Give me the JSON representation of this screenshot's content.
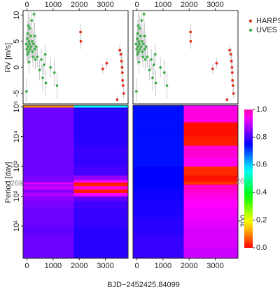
{
  "chart_data": [
    {
      "type": "scatter",
      "ylabel": "RV [m/s]",
      "xlim": [
        -150,
        3870
      ],
      "xticks": [
        0,
        1000,
        2000,
        3000
      ],
      "ylim": [
        -7,
        10.9
      ],
      "yticks": [
        10,
        5,
        0,
        -5
      ],
      "legend": "right",
      "series": [
        {
          "name": "HARPS",
          "color": "#e0301e",
          "x": [
            2050,
            2060,
            2900,
            3050,
            3450,
            3550,
            3600,
            3620,
            3640,
            3650,
            3660,
            3680,
            3700
          ],
          "values": [
            6.8,
            5,
            -0.3,
            0.8,
            -6.2,
            3.3,
            2.5,
            1.2,
            0,
            -1,
            -2.5,
            -3.5,
            -5
          ],
          "errors": [
            1.5,
            1.5,
            1,
            1,
            0.8,
            1,
            1,
            1,
            1,
            1,
            1,
            1,
            1
          ]
        },
        {
          "name": "UVES",
          "color": "#3fae49",
          "x": [
            -30,
            -20,
            -10,
            10,
            20,
            30,
            40,
            50,
            60,
            70,
            80,
            90,
            100,
            120,
            140,
            160,
            180,
            200,
            210,
            230,
            250,
            270,
            290,
            300,
            320,
            350,
            400,
            480,
            550,
            600,
            650,
            700,
            720,
            900,
            1050,
            1150
          ],
          "values": [
            4.5,
            -4.6,
            3.5,
            5.5,
            2.5,
            6.5,
            4,
            8,
            3,
            5,
            1,
            4.5,
            7.5,
            3.5,
            6,
            4,
            9,
            5,
            3,
            2,
            4.5,
            10.2,
            6,
            3.5,
            1.5,
            4,
            2,
            -0.5,
            1.5,
            -2,
            0.5,
            2.5,
            -3,
            0,
            -1,
            -3.5
          ],
          "errors": [
            2,
            2.5,
            2,
            2.5,
            2,
            2.5,
            2,
            3,
            2,
            2.5,
            2,
            2,
            2.5,
            2,
            2.5,
            2,
            3,
            2.5,
            2,
            2,
            2.5,
            3,
            2.5,
            2,
            2,
            2.5,
            2,
            2,
            2,
            2.5,
            2,
            2,
            2.5,
            2,
            2.5,
            2.5
          ]
        }
      ]
    },
    {
      "type": "heatmap",
      "ylabel": "Period [day]",
      "xlabel": "BJD−2452425.84099",
      "xlim": [
        -150,
        3870
      ],
      "xticks": [
        0,
        1000,
        2000,
        3000
      ],
      "log_y": true,
      "ylim": [
        0.83,
        112000
      ],
      "yticks": [
        {
          "value": 10,
          "label": "10¹"
        },
        {
          "value": 100,
          "label": "10²"
        },
        {
          "value": 1000,
          "label": "10³"
        },
        {
          "value": 10000,
          "label": "10⁴"
        },
        {
          "value": 100000,
          "label": "10⁵"
        }
      ],
      "x_edges": [
        -150,
        1800,
        3870
      ],
      "y_edges": [
        0.83,
        2,
        5,
        10,
        20,
        40,
        70,
        100,
        130,
        170,
        220,
        250,
        290,
        350,
        500,
        1000,
        2000,
        5000,
        10000,
        30000,
        95000,
        112000
      ],
      "power": [
        [
          [
            0.83,
            0.83,
            0.82,
            0.83,
            0.83,
            0.84,
            0.85,
            0.88,
            0.85,
            0.9,
            0.86,
            0.92,
            0.85,
            0.84,
            0.83,
            0.83,
            0.83,
            0.83,
            0.83,
            0.83,
            0.1
          ],
          [
            0.78,
            0.78,
            0.78,
            0.79,
            0.79,
            0.8,
            0.82,
            0.93,
            0.02,
            0.96,
            0.03,
            0.02,
            0.94,
            0.86,
            0.8,
            0.79,
            0.79,
            0.78,
            0.78,
            0.78,
            0.55
          ]
        ],
        [
          [
            0.79,
            0.79,
            0.78,
            0.78,
            0.77,
            0.77,
            0.76,
            0.76,
            0.76,
            0.75,
            0.75,
            0.75,
            0.75,
            0.75,
            0.75,
            0.74,
            0.74,
            0.74,
            0.74,
            0.74,
            0.74
          ],
          [
            0.9,
            0.91,
            0.91,
            0.92,
            0.93,
            0.94,
            0.95,
            0.96,
            0.97,
            0.98,
            0.99,
            0.04,
            0.02,
            0.01,
            0.03,
            0.95,
            0.97,
            0.02,
            0.01,
            0.96,
            0.94
          ]
        ]
      ],
      "colormap": "rainbow",
      "clim": [
        0,
        1
      ],
      "colorbar_ticks": [
        {
          "value": 0,
          "label": "0.0"
        },
        {
          "value": 0.2,
          "label": "0.2"
        },
        {
          "value": 0.4,
          "label": "0.4"
        },
        {
          "value": 0.6,
          "label": "0.6"
        },
        {
          "value": 0.8,
          "label": "0.8"
        },
        {
          "value": 1,
          "label": "1.0"
        }
      ],
      "marker": {
        "value": 266,
        "label": "266"
      },
      "y2lim": [
        0,
        820
      ],
      "y2ticks": [
        200
      ]
    }
  ]
}
